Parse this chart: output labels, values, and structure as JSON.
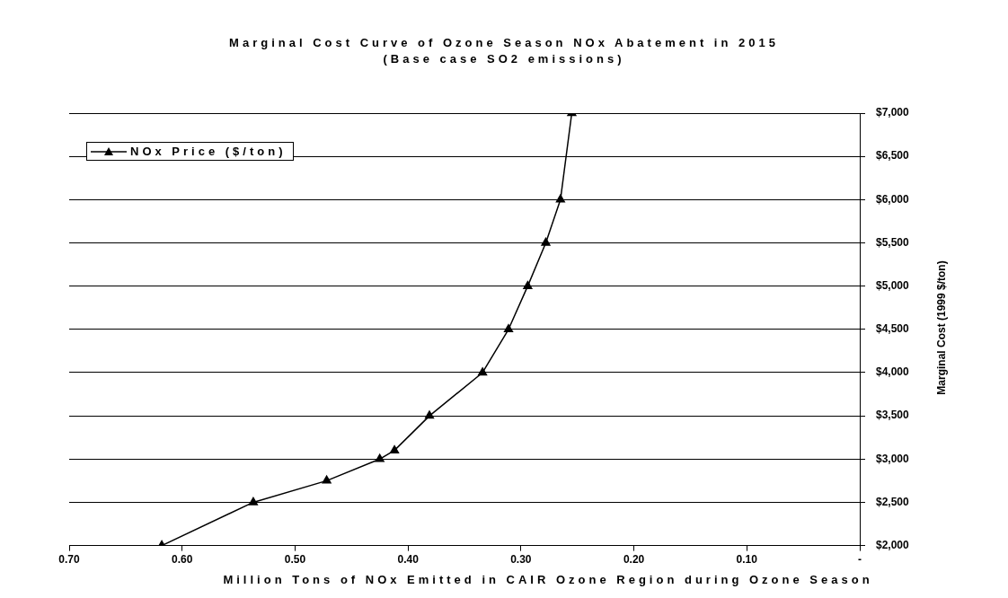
{
  "chart_data": {
    "type": "line",
    "title": "Marginal Cost Curve of Ozone Season NOx Abatement in 2015",
    "subtitle": "(Base case SO2 emissions)",
    "xlabel": "Million Tons of NOx Emitted in CAIR Ozone Region during Ozone Season",
    "ylabel": "Marginal Cost (1999 $/ton)",
    "x": [
      0.618,
      0.537,
      0.472,
      0.425,
      0.412,
      0.381,
      0.334,
      0.311,
      0.294,
      0.278,
      0.265,
      0.255
    ],
    "series": [
      {
        "name": "NOx Price ($/ton)",
        "color": "#000000",
        "values": [
          2000,
          2500,
          2750,
          3000,
          3100,
          3500,
          4000,
          4500,
          5000,
          5500,
          6000,
          7000
        ]
      }
    ],
    "xlim": [
      0.7,
      0
    ],
    "xticks": [
      {
        "value": 0.7,
        "label": "0.70"
      },
      {
        "value": 0.6,
        "label": "0.60"
      },
      {
        "value": 0.5,
        "label": "0.50"
      },
      {
        "value": 0.4,
        "label": "0.40"
      },
      {
        "value": 0.3,
        "label": "0.30"
      },
      {
        "value": 0.2,
        "label": "0.20"
      },
      {
        "value": 0.1,
        "label": "0.10"
      },
      {
        "value": 0,
        "label": "-"
      }
    ],
    "ylim": [
      2000,
      7000
    ],
    "yticks": [
      {
        "value": 2000,
        "label": "$2,000"
      },
      {
        "value": 2500,
        "label": "$2,500"
      },
      {
        "value": 3000,
        "label": "$3,000"
      },
      {
        "value": 3500,
        "label": "$3,500"
      },
      {
        "value": 4000,
        "label": "$4,000"
      },
      {
        "value": 4500,
        "label": "$4,500"
      },
      {
        "value": 5000,
        "label": "$5,000"
      },
      {
        "value": 5500,
        "label": "$5,500"
      },
      {
        "value": 6000,
        "label": "$6,000"
      },
      {
        "value": 6500,
        "label": "$6,500"
      },
      {
        "value": 7000,
        "label": "$7,000"
      }
    ],
    "grid": "y",
    "legend": "top left",
    "marker": "triangle",
    "line_style": "solid"
  }
}
